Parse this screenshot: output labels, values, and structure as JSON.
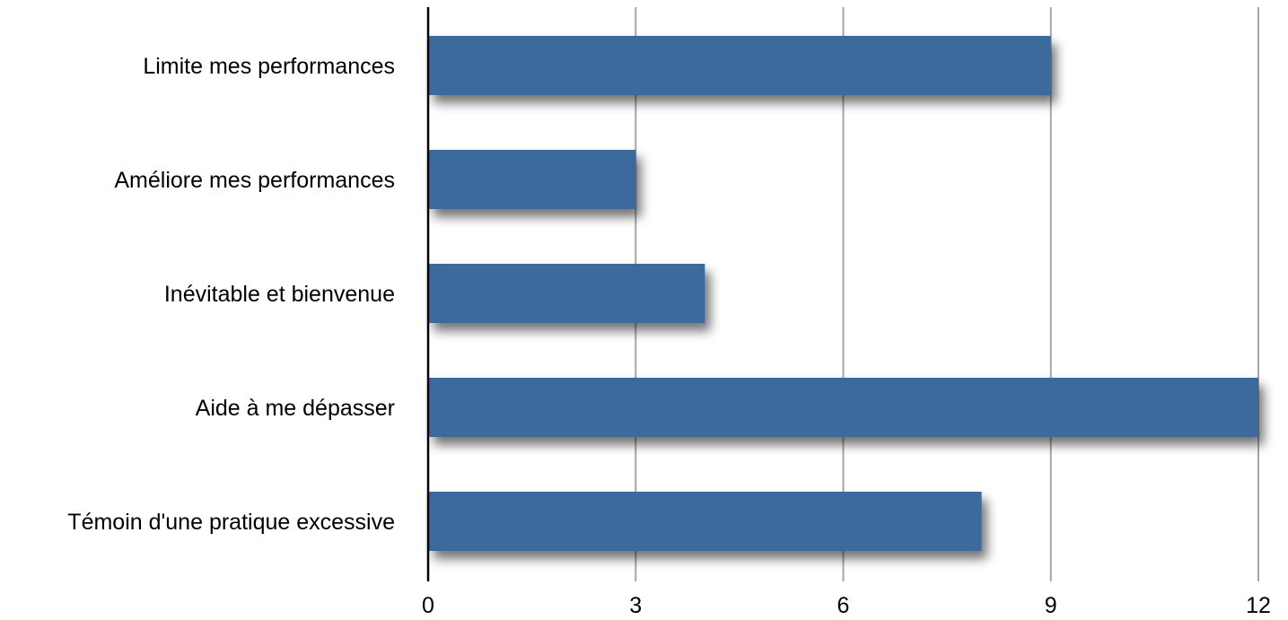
{
  "chart_data": {
    "type": "bar",
    "orientation": "horizontal",
    "categories": [
      "Limite mes performances",
      "Améliore mes performances",
      "Inévitable et bienvenue",
      "Aide à me dépasser",
      "Témoin d'une pratique excessive"
    ],
    "values": [
      9,
      3,
      4,
      12,
      8
    ],
    "xlim": [
      0,
      12
    ],
    "xticks": [
      "0",
      "3",
      "6",
      "9",
      "12"
    ],
    "title": "",
    "xlabel": "",
    "ylabel": "",
    "grid": "vertical",
    "legend": "none",
    "colors": {
      "bar": "#3d6b9c",
      "grid": "#a6a6a6",
      "axis": "#000000"
    }
  }
}
